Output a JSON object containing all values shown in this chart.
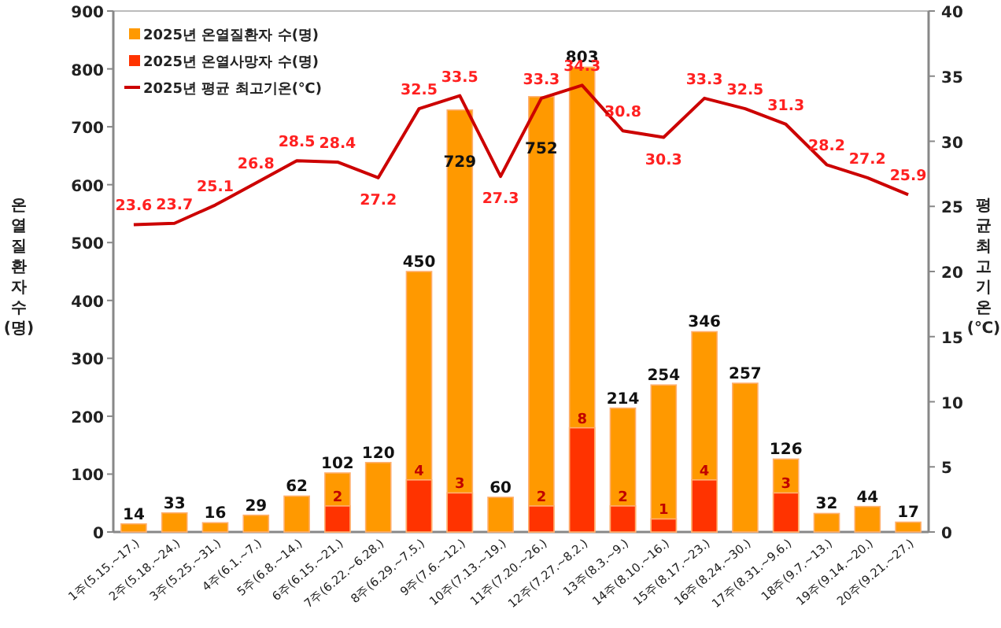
{
  "chart_data": {
    "type": "bar",
    "categories": [
      "1주(5.15.~17.)",
      "2주(5.18.~24.)",
      "3주(5.25.~31.)",
      "4주(6.1.~7.)",
      "5주(6.8.~14.)",
      "6주(6.15.~21.)",
      "7주(6.22.~6.28.)",
      "8주(6.29.~7.5.)",
      "9주(7.6.~12.)",
      "10주(7.13.~19.)",
      "11주(7.20.~26.)",
      "12주(7.27.~8.2.)",
      "13주(8.3.~9.)",
      "14주(8.10.~16.)",
      "15주(8.17.~23.)",
      "16주(8.24.~30.)",
      "17주(8.31.~9.6.)",
      "18주(9.7.~13.)",
      "19주(9.14.~20.)",
      "20주(9.21.~27.)"
    ],
    "series": [
      {
        "name": "2025년 온열질환자 수(명)",
        "color": "#ff9900",
        "values": [
          14,
          33,
          16,
          29,
          62,
          102,
          120,
          450,
          729,
          60,
          752,
          803,
          214,
          254,
          346,
          257,
          126,
          32,
          44,
          17
        ]
      },
      {
        "name": "2025년 온열사망자 수(명)",
        "axis": "y2",
        "color": "#ff3300",
        "values": [
          null,
          null,
          null,
          null,
          null,
          2,
          null,
          4,
          3,
          null,
          2,
          8,
          2,
          1,
          4,
          null,
          3,
          null,
          null,
          null
        ]
      },
      {
        "name": "2025년 평균 최고기온(℃)",
        "type": "line",
        "axis": "y2",
        "color": "#cc0000",
        "values": [
          23.6,
          23.7,
          25.1,
          26.8,
          28.5,
          28.4,
          27.2,
          32.5,
          33.5,
          27.3,
          33.3,
          34.3,
          30.8,
          30.3,
          33.3,
          32.5,
          31.3,
          28.2,
          27.2,
          25.9
        ]
      }
    ],
    "ylabel": "온열질환자 수(명)",
    "y2label": "평균최고기온(℃)",
    "ylim": [
      0,
      900
    ],
    "yticks": [
      0,
      100,
      200,
      300,
      400,
      500,
      600,
      700,
      800,
      900
    ],
    "y2lim": [
      0,
      40
    ],
    "y2ticks": [
      0,
      5,
      10,
      15,
      20,
      25,
      30,
      35,
      40
    ],
    "data_labels": true,
    "legend": "top left",
    "marker": "none",
    "line_style": "solid"
  }
}
